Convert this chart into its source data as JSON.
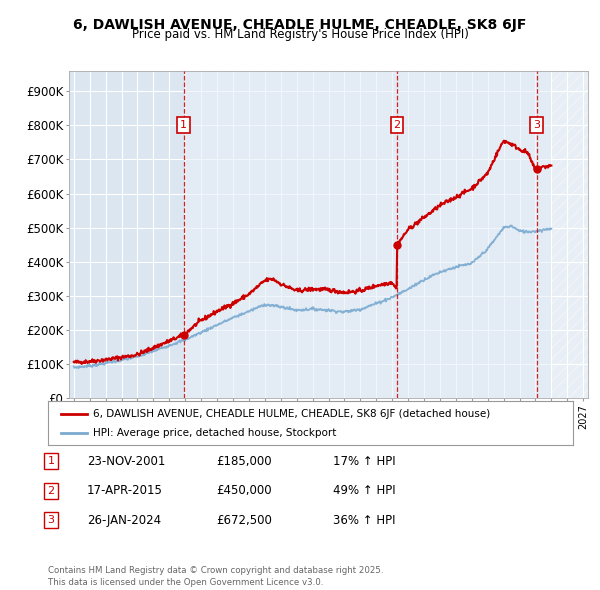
{
  "title": "6, DAWLISH AVENUE, CHEADLE HULME, CHEADLE, SK8 6JF",
  "subtitle": "Price paid vs. HM Land Registry's House Price Index (HPI)",
  "background_color": "#ffffff",
  "plot_bg_color": "#dce6f1",
  "plot_bg_light": "#e8f0f8",
  "grid_color": "#ffffff",
  "xmin": 1994.7,
  "xmax": 2027.3,
  "ymin": 0,
  "ymax": 960000,
  "yticks": [
    0,
    100000,
    200000,
    300000,
    400000,
    500000,
    600000,
    700000,
    800000,
    900000
  ],
  "ytick_labels": [
    "£0",
    "£100K",
    "£200K",
    "£300K",
    "£400K",
    "£500K",
    "£600K",
    "£700K",
    "£800K",
    "£900K"
  ],
  "transactions": [
    {
      "num": 1,
      "date": "23-NOV-2001",
      "price": 185000,
      "price_str": "£185,000",
      "hpi_pct": "17%",
      "x": 2001.9
    },
    {
      "num": 2,
      "date": "17-APR-2015",
      "price": 450000,
      "price_str": "£450,000",
      "hpi_pct": "49%",
      "x": 2015.3
    },
    {
      "num": 3,
      "date": "26-JAN-2024",
      "price": 672500,
      "price_str": "£672,500",
      "hpi_pct": "36%",
      "x": 2024.08
    }
  ],
  "legend_line1": "6, DAWLISH AVENUE, CHEADLE HULME, CHEADLE, SK8 6JF (detached house)",
  "legend_line2": "HPI: Average price, detached house, Stockport",
  "footer": "Contains HM Land Registry data © Crown copyright and database right 2025.\nThis data is licensed under the Open Government Licence v3.0.",
  "red_color": "#cc0000",
  "blue_color": "#7aaad0",
  "hatch_start": 2025.0,
  "shaded_region_start": 2001.9,
  "shaded_region_end": 2025.0
}
